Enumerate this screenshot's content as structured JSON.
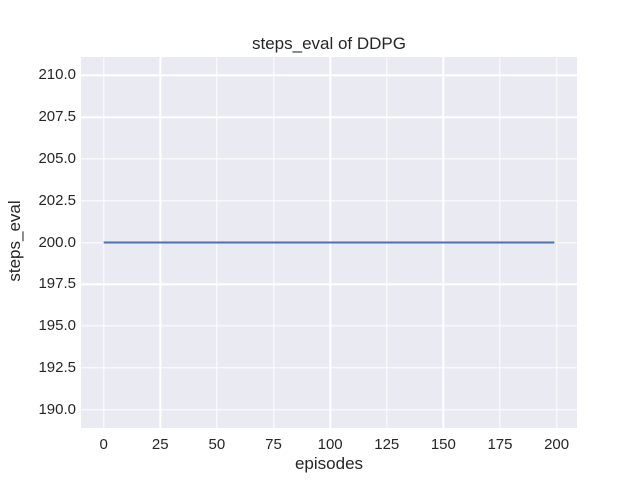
{
  "chart_data": {
    "type": "line",
    "title": "steps_eval of DDPG",
    "xlabel": "episodes",
    "ylabel": "steps_eval",
    "xlim": [
      -10,
      209
    ],
    "ylim": [
      188.9,
      211.1
    ],
    "grid": true,
    "legend": "none",
    "figure_background": "#FFFFFF",
    "axes_background": "#EAEAF2",
    "grid_color": "#FFFFFF",
    "text_color": "#262626",
    "xticks": {
      "values": [
        0,
        25,
        50,
        75,
        100,
        125,
        150,
        175,
        200
      ],
      "labels": [
        "0",
        "25",
        "50",
        "75",
        "100",
        "125",
        "150",
        "175",
        "200"
      ]
    },
    "yticks": {
      "values": [
        190,
        192.5,
        195,
        197.5,
        200,
        202.5,
        205,
        207.5,
        210
      ],
      "labels": [
        "190.0",
        "192.5",
        "195.0",
        "197.5",
        "200.0",
        "202.5",
        "205.0",
        "207.5",
        "210.0"
      ]
    },
    "series": [
      {
        "name": "DDPG",
        "color": "#4C72B0",
        "linewidth": 2,
        "x": [
          0,
          199
        ],
        "y": [
          200,
          200
        ]
      }
    ]
  }
}
